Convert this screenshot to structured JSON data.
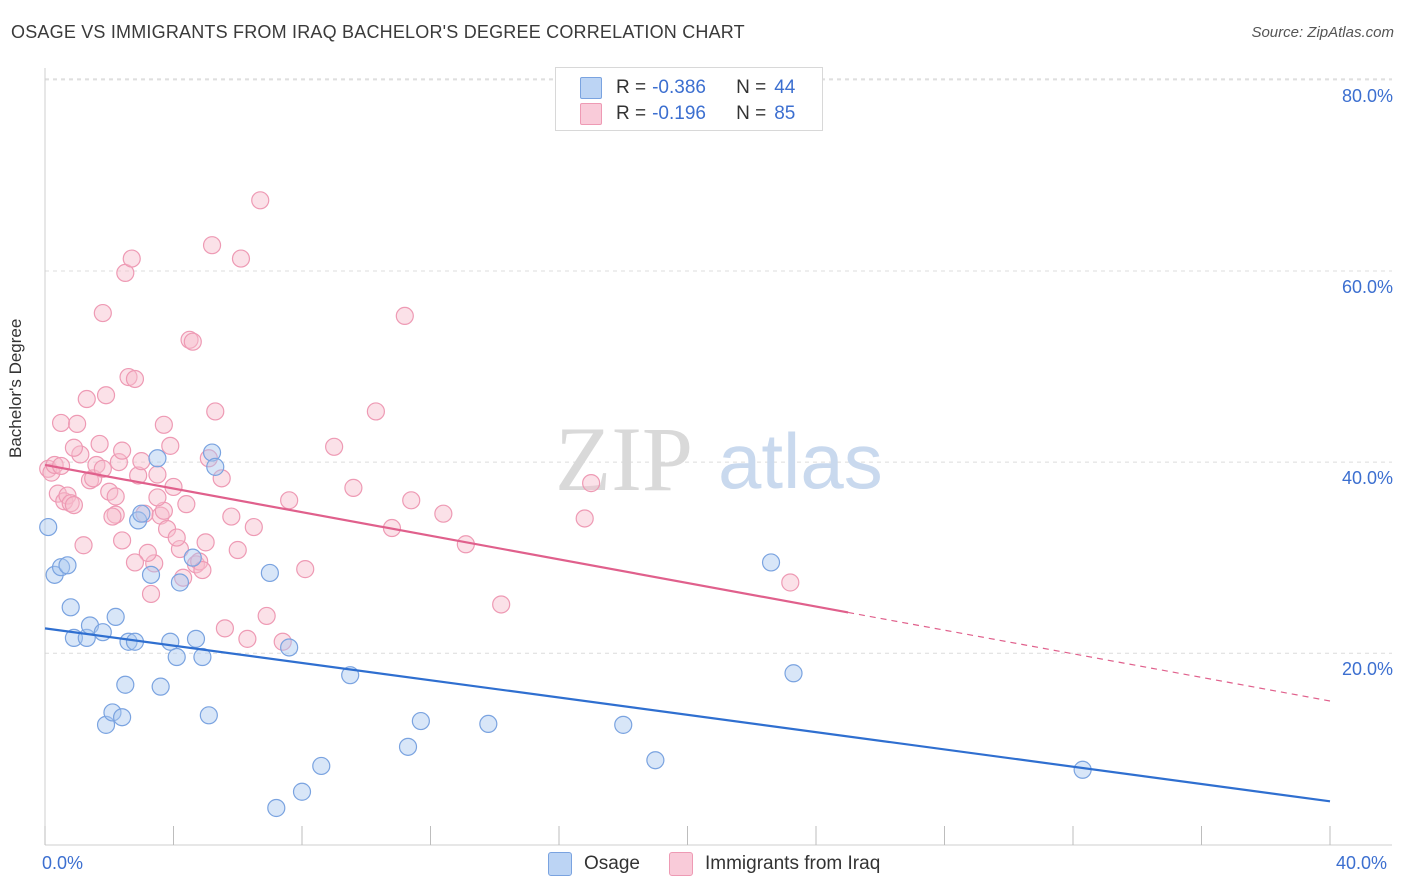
{
  "title": "OSAGE VS IMMIGRANTS FROM IRAQ BACHELOR'S DEGREE CORRELATION CHART",
  "source": "Source: ZipAtlas.com",
  "watermark": {
    "zip": "ZIP",
    "atlas": "atlas"
  },
  "legend_top": [
    {
      "r_label": "R =",
      "r_value": "-0.386",
      "n_label": "N =",
      "n_value": "44"
    },
    {
      "r_label": "R =",
      "r_value": "-0.196",
      "n_label": "N =",
      "n_value": "85"
    }
  ],
  "colors": {
    "osage_fill": "#a9c7f0",
    "osage_stroke": "#7aa3e0",
    "osage_line": "#2f6fd0",
    "iraq_fill": "#f6bccd",
    "iraq_stroke": "#ee9ab4",
    "iraq_line": "#e0608c",
    "tick_text": "#3c6fd0",
    "grid": "#dcdcdc"
  },
  "chart_data": {
    "type": "scatter",
    "title": "OSAGE VS IMMIGRANTS FROM IRAQ BACHELOR'S DEGREE CORRELATION CHART",
    "xlabel": "",
    "ylabel": "Bachelor's Degree",
    "xlim": [
      0,
      40
    ],
    "ylim": [
      0,
      80
    ],
    "x_tick_labels": [
      "0.0%",
      "40.0%"
    ],
    "y_tick_labels": [
      "20.0%",
      "40.0%",
      "60.0%",
      "80.0%"
    ],
    "y_ticks": [
      20,
      40,
      60,
      80
    ],
    "grid": true,
    "legend_placement": "bottom",
    "series": [
      {
        "name": "Osage",
        "trend": {
          "x": [
            0,
            40
          ],
          "y": [
            22.6,
            4.5
          ],
          "solid_until": 40
        },
        "points": [
          [
            0.1,
            33.2
          ],
          [
            0.3,
            28.2
          ],
          [
            0.5,
            29.0
          ],
          [
            0.7,
            29.2
          ],
          [
            0.8,
            24.8
          ],
          [
            0.9,
            21.6
          ],
          [
            1.3,
            21.6
          ],
          [
            1.4,
            22.9
          ],
          [
            1.8,
            22.2
          ],
          [
            1.9,
            12.5
          ],
          [
            2.1,
            13.8
          ],
          [
            2.4,
            13.3
          ],
          [
            2.5,
            16.7
          ],
          [
            2.6,
            21.2
          ],
          [
            2.8,
            21.2
          ],
          [
            2.9,
            33.9
          ],
          [
            3.0,
            34.6
          ],
          [
            3.3,
            28.2
          ],
          [
            3.5,
            40.4
          ],
          [
            3.6,
            16.5
          ],
          [
            3.9,
            21.2
          ],
          [
            4.1,
            19.6
          ],
          [
            4.2,
            27.4
          ],
          [
            4.6,
            30.0
          ],
          [
            4.9,
            19.6
          ],
          [
            5.1,
            13.5
          ],
          [
            5.2,
            41.0
          ],
          [
            5.3,
            39.5
          ],
          [
            7.0,
            28.4
          ],
          [
            7.2,
            3.8
          ],
          [
            7.6,
            20.6
          ],
          [
            8.0,
            5.5
          ],
          [
            8.6,
            8.2
          ],
          [
            9.5,
            17.7
          ],
          [
            11.3,
            10.2
          ],
          [
            11.7,
            12.9
          ],
          [
            13.8,
            12.6
          ],
          [
            18.0,
            12.5
          ],
          [
            19.0,
            8.8
          ],
          [
            22.6,
            29.5
          ],
          [
            23.3,
            17.9
          ],
          [
            32.3,
            7.8
          ],
          [
            2.2,
            23.8
          ],
          [
            4.7,
            21.5
          ]
        ]
      },
      {
        "name": "Immigrants from Iraq",
        "trend": {
          "x": [
            0,
            40
          ],
          "y": [
            39.7,
            15.0
          ],
          "solid_until": 25.0
        },
        "points": [
          [
            0.1,
            39.3
          ],
          [
            0.2,
            38.9
          ],
          [
            0.3,
            39.7
          ],
          [
            0.4,
            36.7
          ],
          [
            0.5,
            39.6
          ],
          [
            0.5,
            44.1
          ],
          [
            0.6,
            35.9
          ],
          [
            0.7,
            36.5
          ],
          [
            0.8,
            35.7
          ],
          [
            0.9,
            35.5
          ],
          [
            1.0,
            44.0
          ],
          [
            1.1,
            40.8
          ],
          [
            1.3,
            46.6
          ],
          [
            1.4,
            38.1
          ],
          [
            1.5,
            38.3
          ],
          [
            1.6,
            39.7
          ],
          [
            1.7,
            41.9
          ],
          [
            1.8,
            39.3
          ],
          [
            1.8,
            55.6
          ],
          [
            1.9,
            47.0
          ],
          [
            2.0,
            36.9
          ],
          [
            2.2,
            36.4
          ],
          [
            2.2,
            34.5
          ],
          [
            2.3,
            40.0
          ],
          [
            2.4,
            31.8
          ],
          [
            2.5,
            59.8
          ],
          [
            2.6,
            48.9
          ],
          [
            2.7,
            61.3
          ],
          [
            2.8,
            48.7
          ],
          [
            2.9,
            38.6
          ],
          [
            3.0,
            40.1
          ],
          [
            3.1,
            34.6
          ],
          [
            3.3,
            26.2
          ],
          [
            3.4,
            29.4
          ],
          [
            3.5,
            38.7
          ],
          [
            3.6,
            34.4
          ],
          [
            3.7,
            43.9
          ],
          [
            3.8,
            33.0
          ],
          [
            3.9,
            41.7
          ],
          [
            4.0,
            37.4
          ],
          [
            4.2,
            30.9
          ],
          [
            4.3,
            27.9
          ],
          [
            4.4,
            35.6
          ],
          [
            4.5,
            52.8
          ],
          [
            4.6,
            52.6
          ],
          [
            4.7,
            29.3
          ],
          [
            4.8,
            29.6
          ],
          [
            5.0,
            31.6
          ],
          [
            5.1,
            40.4
          ],
          [
            5.3,
            45.3
          ],
          [
            5.5,
            38.3
          ],
          [
            5.6,
            22.6
          ],
          [
            5.8,
            34.3
          ],
          [
            6.0,
            30.8
          ],
          [
            6.1,
            61.3
          ],
          [
            6.3,
            21.5
          ],
          [
            6.5,
            33.2
          ],
          [
            6.9,
            23.9
          ],
          [
            7.4,
            21.2
          ],
          [
            7.6,
            36.0
          ],
          [
            8.1,
            28.8
          ],
          [
            9.0,
            41.6
          ],
          [
            9.6,
            37.3
          ],
          [
            10.3,
            45.3
          ],
          [
            10.8,
            33.1
          ],
          [
            11.2,
            55.3
          ],
          [
            11.4,
            36.0
          ],
          [
            12.4,
            34.6
          ],
          [
            13.1,
            31.4
          ],
          [
            14.2,
            25.1
          ],
          [
            16.8,
            34.1
          ],
          [
            17.0,
            37.8
          ],
          [
            23.2,
            27.4
          ],
          [
            5.2,
            62.7
          ],
          [
            2.1,
            34.3
          ],
          [
            3.2,
            30.5
          ],
          [
            4.1,
            32.1
          ],
          [
            3.7,
            34.9
          ],
          [
            2.8,
            29.5
          ],
          [
            1.2,
            31.3
          ],
          [
            6.7,
            67.4
          ],
          [
            4.9,
            28.7
          ],
          [
            0.9,
            41.5
          ],
          [
            2.4,
            41.2
          ],
          [
            3.5,
            36.3
          ]
        ]
      }
    ]
  }
}
